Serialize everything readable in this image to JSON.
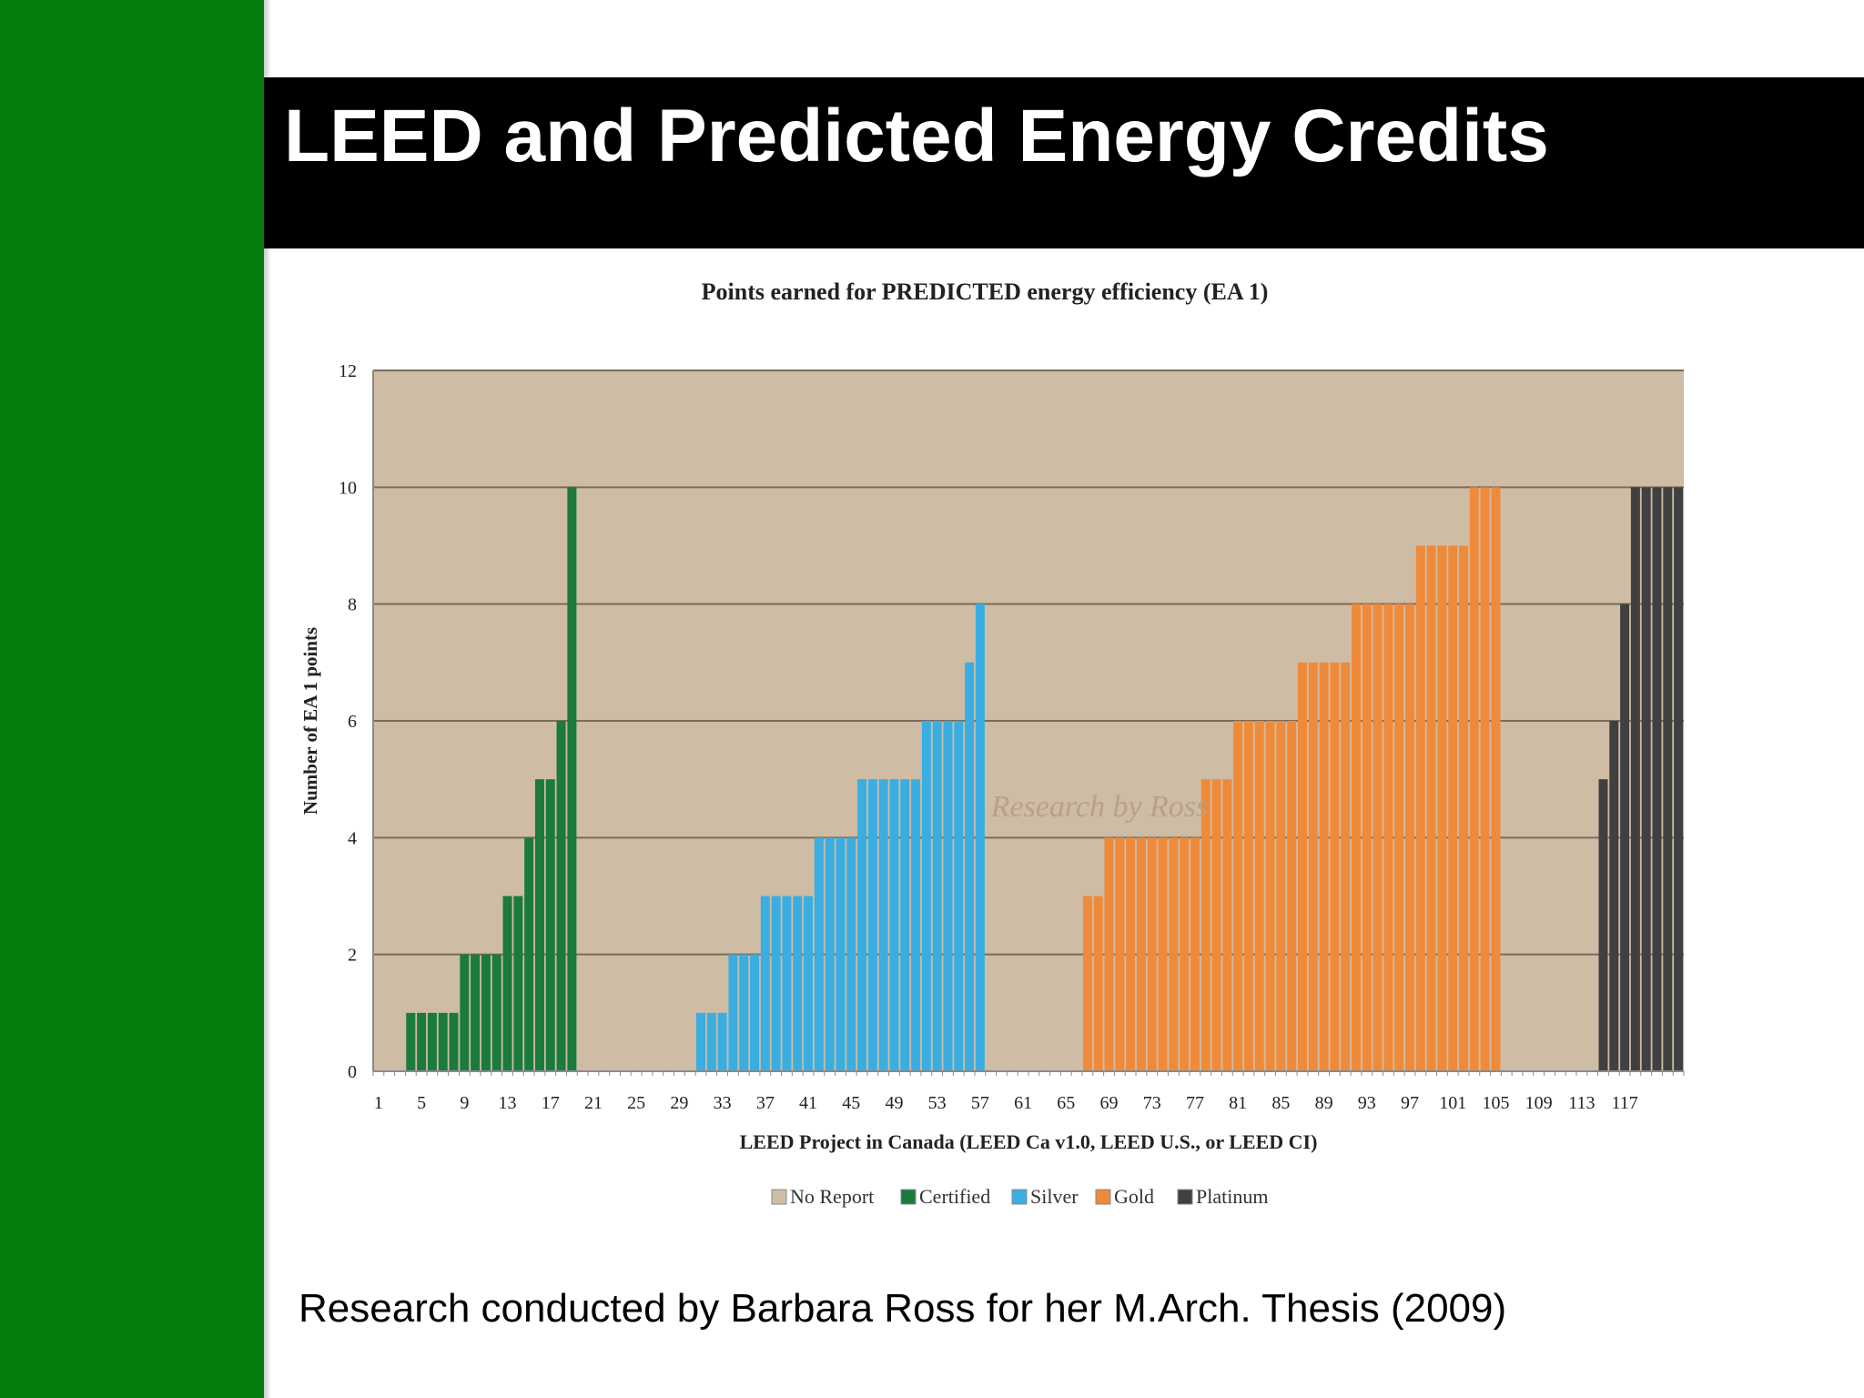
{
  "slide": {
    "title": "LEED and Predicted Energy Credits",
    "caption": "Research conducted by Barbara Ross for her M.Arch. Thesis (2009)",
    "watermark": "Research by Ross",
    "colors": {
      "sidebar": "#067d0c",
      "title_band": "#000000"
    }
  },
  "chart_data": {
    "type": "bar",
    "title": "Points earned for PREDICTED energy efficiency (EA 1)",
    "xlabel": "LEED Project in Canada (LEED Ca v1.0, LEED U.S., or LEED CI)",
    "ylabel": "Number of EA 1 points",
    "ylim": [
      0,
      12
    ],
    "yticks": [
      "0",
      "2",
      "4",
      "6",
      "8",
      "10",
      "12"
    ],
    "xticks": [
      "1",
      "5",
      "9",
      "13",
      "17",
      "21",
      "25",
      "29",
      "33",
      "37",
      "41",
      "45",
      "49",
      "53",
      "57",
      "61",
      "65",
      "69",
      "73",
      "77",
      "81",
      "85",
      "89",
      "93",
      "97",
      "101",
      "105",
      "109",
      "113",
      "117"
    ],
    "grid": true,
    "legend_position": "bottom",
    "plot_background": "#cfbca5",
    "legend": [
      {
        "name": "No Report",
        "color": "#cfbca5"
      },
      {
        "name": "Certified",
        "color": "#1b7a3d"
      },
      {
        "name": "Silver",
        "color": "#3aaee0"
      },
      {
        "name": "Gold",
        "color": "#ef8a3a"
      },
      {
        "name": "Platinum",
        "color": "#404040"
      }
    ],
    "series": [
      {
        "name": "Certified",
        "color": "#1b7a3d",
        "x": [
          4,
          5,
          6,
          7,
          8,
          9,
          10,
          11,
          12,
          13,
          14,
          15,
          16,
          17,
          18,
          19
        ],
        "values": [
          1,
          1,
          1,
          1,
          1,
          2,
          2,
          2,
          2,
          3,
          3,
          4,
          5,
          5,
          6,
          10
        ]
      },
      {
        "name": "Silver",
        "color": "#3aaee0",
        "x": [
          31,
          32,
          33,
          34,
          35,
          36,
          37,
          38,
          39,
          40,
          41,
          42,
          43,
          44,
          45,
          46,
          47,
          48,
          49,
          50,
          51,
          52,
          53,
          54,
          55,
          56,
          57
        ],
        "values": [
          1,
          1,
          1,
          2,
          2,
          2,
          3,
          3,
          3,
          3,
          3,
          4,
          4,
          4,
          4,
          5,
          5,
          5,
          5,
          5,
          5,
          6,
          6,
          6,
          6,
          7,
          8
        ]
      },
      {
        "name": "Gold",
        "color": "#ef8a3a",
        "x": [
          67,
          68,
          69,
          70,
          71,
          72,
          73,
          74,
          75,
          76,
          77,
          78,
          79,
          80,
          81,
          82,
          83,
          84,
          85,
          86,
          87,
          88,
          89,
          90,
          91,
          92,
          93,
          94,
          95,
          96,
          97,
          98,
          99,
          100,
          101,
          102,
          103,
          104,
          105
        ],
        "values": [
          3,
          3,
          4,
          4,
          4,
          4,
          4,
          4,
          4,
          4,
          4,
          5,
          5,
          5,
          6,
          6,
          6,
          6,
          6,
          6,
          7,
          7,
          7,
          7,
          7,
          8,
          8,
          8,
          8,
          8,
          8,
          9,
          9,
          9,
          9,
          9,
          10,
          10,
          10
        ]
      },
      {
        "name": "Platinum",
        "color": "#404040",
        "x": [
          115,
          116,
          117,
          118,
          119,
          120,
          121,
          122
        ],
        "values": [
          5,
          6,
          8,
          10,
          10,
          10,
          10,
          10
        ]
      }
    ]
  }
}
